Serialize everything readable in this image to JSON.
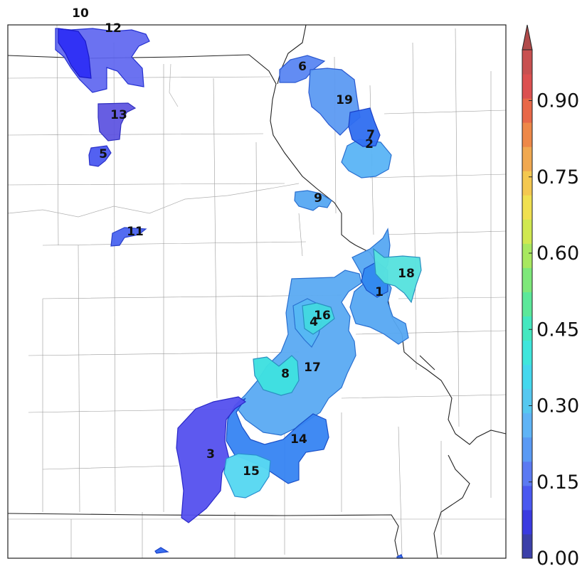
{
  "colorbar": {
    "ticks": [
      "0.00",
      "0.15",
      "0.30",
      "0.45",
      "0.60",
      "0.75",
      "0.90"
    ],
    "min": 0.0,
    "max": 1.0,
    "extend": "max",
    "colors": [
      "#3b3fa8",
      "#3a3ae0",
      "#4a58f0",
      "#5b7af2",
      "#5a9af4",
      "#5fb4f6",
      "#56c8f0",
      "#45d8ee",
      "#3fe6dc",
      "#44e8c0",
      "#5ce89a",
      "#7ee87a",
      "#a8e860",
      "#d0e850",
      "#f0e050",
      "#f4c850",
      "#f0a850",
      "#ee8848",
      "#e86848",
      "#dc5050",
      "#c85050"
    ]
  },
  "regions": [
    {
      "id": "1",
      "label": "1",
      "fill": "#2f86f0"
    },
    {
      "id": "2",
      "label": "2",
      "fill": "#4a86f2"
    },
    {
      "id": "3",
      "label": "3",
      "fill": "#5450ee"
    },
    {
      "id": "4",
      "label": "4",
      "fill": "#56b8f4"
    },
    {
      "id": "5",
      "label": "5",
      "fill": "#4a58f0"
    },
    {
      "id": "6",
      "label": "6",
      "fill": "#5a86f2"
    },
    {
      "id": "7",
      "label": "7",
      "fill": "#2f6ef0"
    },
    {
      "id": "8",
      "label": "8",
      "fill": "#3fe0e0"
    },
    {
      "id": "9",
      "label": "9",
      "fill": "#56a8f2"
    },
    {
      "id": "10",
      "label": "10",
      "fill": "#2e2ef4"
    },
    {
      "id": "11",
      "label": "11",
      "fill": "#4a64f0"
    },
    {
      "id": "12",
      "label": "12",
      "fill": "#5e66f0"
    },
    {
      "id": "13",
      "label": "13",
      "fill": "#5a50e0"
    },
    {
      "id": "14",
      "label": "14",
      "fill": "#3684f2"
    },
    {
      "id": "15",
      "label": "15",
      "fill": "#58d8f2"
    },
    {
      "id": "16",
      "label": "16",
      "fill": "#42d8e0"
    },
    {
      "id": "17",
      "label": "17",
      "fill": "#5aaaf2"
    },
    {
      "id": "18",
      "label": "18",
      "fill": "#58e2de"
    },
    {
      "id": "19",
      "label": "19",
      "fill": "#5c9af2"
    }
  ]
}
